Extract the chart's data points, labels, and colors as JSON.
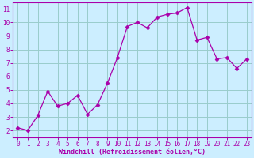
{
  "x": [
    0,
    1,
    2,
    3,
    4,
    5,
    6,
    7,
    8,
    9,
    10,
    11,
    12,
    13,
    14,
    15,
    16,
    17,
    18,
    19,
    20,
    21,
    22,
    23
  ],
  "y": [
    2.2,
    2.0,
    3.1,
    4.9,
    3.8,
    4.0,
    4.6,
    3.2,
    3.9,
    5.5,
    7.4,
    9.7,
    10.0,
    9.6,
    10.4,
    10.6,
    10.7,
    11.1,
    8.7,
    8.9,
    7.3,
    7.4,
    6.6,
    7.3
  ],
  "line_color": "#aa00aa",
  "marker": "D",
  "marker_size": 2.5,
  "bg_color": "#cceeff",
  "grid_color": "#99cccc",
  "xlabel": "Windchill (Refroidissement éolien,°C)",
  "xlabel_color": "#aa00aa",
  "tick_color": "#aa00aa",
  "label_bar_color": "#8800aa",
  "ylim": [
    1.5,
    11.5
  ],
  "xlim": [
    -0.5,
    23.5
  ],
  "yticks": [
    2,
    3,
    4,
    5,
    6,
    7,
    8,
    9,
    10,
    11
  ],
  "xticks": [
    0,
    1,
    2,
    3,
    4,
    5,
    6,
    7,
    8,
    9,
    10,
    11,
    12,
    13,
    14,
    15,
    16,
    17,
    18,
    19,
    20,
    21,
    22,
    23
  ],
  "spine_color": "#aa00aa",
  "font_family": "monospace",
  "tick_fontsize": 5.5,
  "xlabel_fontsize": 6.0
}
